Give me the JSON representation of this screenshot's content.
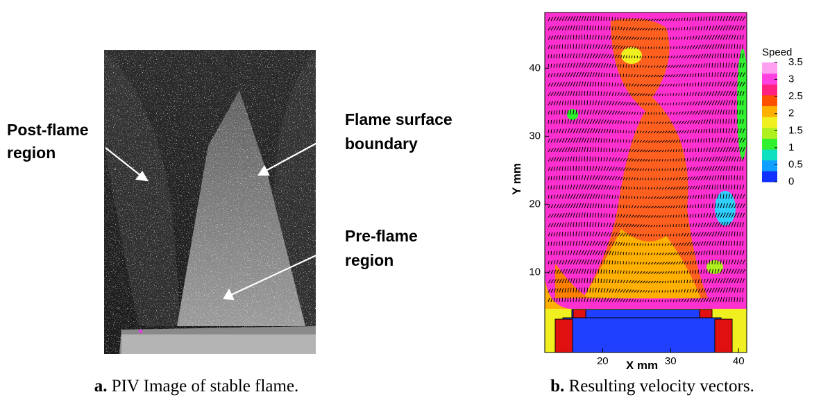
{
  "figure": {
    "panels": [
      {
        "label": "a.",
        "caption": "PIV Image of stable flame.",
        "annotations": [
          [
            "Post-flame",
            "region"
          ],
          [
            "Flame surface",
            "boundary"
          ],
          [
            "Pre-flame",
            "region"
          ]
        ]
      },
      {
        "label": "b.",
        "caption": "Resulting velocity vectors."
      }
    ]
  },
  "chart_data": {
    "type": "contour",
    "xlabel": "X mm",
    "ylabel": "Y mm",
    "xlim": [
      11.5,
      41.2
    ],
    "ylim": [
      -1.8,
      48.2
    ],
    "xticks": [
      20,
      30,
      40
    ],
    "yticks": [
      10,
      20,
      30,
      40
    ],
    "colorbar": {
      "title": "Speed",
      "lim": [
        0,
        3.5
      ],
      "ticks": [
        3.5,
        3,
        2.5,
        2,
        1.5,
        1,
        0.5,
        0
      ],
      "colors": [
        "#1030ff",
        "#10a0ff",
        "#10e0c0",
        "#30f030",
        "#b0f020",
        "#f0f020",
        "#ffb000",
        "#ff5000",
        "#ff2080",
        "#ff40e0",
        "#ffa0f0"
      ]
    }
  }
}
